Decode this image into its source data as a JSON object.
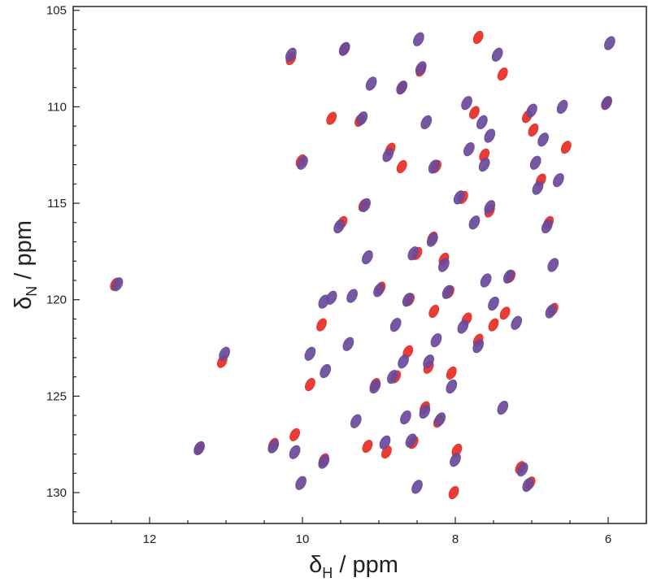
{
  "chart_data": {
    "type": "scatter",
    "title": "",
    "xlabel": {
      "symbol": "δ",
      "sub": "H",
      "unit": " / ppm"
    },
    "ylabel": {
      "symbol": "δ",
      "sub": "N",
      "unit": " / ppm"
    },
    "xlim": [
      13.0,
      5.5
    ],
    "ylim": [
      104.8,
      131.6
    ],
    "x_reversed": true,
    "y_reversed": true,
    "x_ticks": [
      {
        "value": 12,
        "label": "12"
      },
      {
        "value": 10,
        "label": "10"
      },
      {
        "value": 8,
        "label": "8"
      },
      {
        "value": 6,
        "label": "6"
      }
    ],
    "y_ticks": [
      {
        "value": 105,
        "label": "105"
      },
      {
        "value": 110,
        "label": "110"
      },
      {
        "value": 115,
        "label": "115"
      },
      {
        "value": 120,
        "label": "120"
      },
      {
        "value": 125,
        "label": "125"
      },
      {
        "value": 130,
        "label": "130"
      }
    ],
    "grid": false,
    "legend": "none",
    "series": [
      {
        "color": "#e8322a",
        "points": [
          [
            12.45,
            119.2
          ],
          [
            11.05,
            123.2
          ],
          [
            10.15,
            107.5
          ],
          [
            10.02,
            112.8
          ],
          [
            9.9,
            124.4
          ],
          [
            9.75,
            121.3
          ],
          [
            9.72,
            128.3
          ],
          [
            9.48,
            116.0
          ],
          [
            9.45,
            107.0
          ],
          [
            9.25,
            110.7
          ],
          [
            9.2,
            115.1
          ],
          [
            9.05,
            124.4
          ],
          [
            8.98,
            119.4
          ],
          [
            8.9,
            127.9
          ],
          [
            8.85,
            112.2
          ],
          [
            8.78,
            124.0
          ],
          [
            8.7,
            109.0
          ],
          [
            8.7,
            113.1
          ],
          [
            8.62,
            122.7
          ],
          [
            8.6,
            120.0
          ],
          [
            8.55,
            127.4
          ],
          [
            8.5,
            117.6
          ],
          [
            8.45,
            108.1
          ],
          [
            8.4,
            125.6
          ],
          [
            8.35,
            123.5
          ],
          [
            8.3,
            116.8
          ],
          [
            8.25,
            113.1
          ],
          [
            8.22,
            126.3
          ],
          [
            8.15,
            117.9
          ],
          [
            8.08,
            119.6
          ],
          [
            8.05,
            123.8
          ],
          [
            8.02,
            130.0
          ],
          [
            7.98,
            127.8
          ],
          [
            7.9,
            114.7
          ],
          [
            7.85,
            121.0
          ],
          [
            7.75,
            110.3
          ],
          [
            7.7,
            122.1
          ],
          [
            7.62,
            112.5
          ],
          [
            7.55,
            115.4
          ],
          [
            7.5,
            121.3
          ],
          [
            7.38,
            108.3
          ],
          [
            7.28,
            118.8
          ],
          [
            7.15,
            128.7
          ],
          [
            7.06,
            110.5
          ],
          [
            6.98,
            111.2
          ],
          [
            6.88,
            113.8
          ],
          [
            6.78,
            116.0
          ],
          [
            6.72,
            120.5
          ],
          [
            6.55,
            112.1
          ],
          [
            6.02,
            109.8
          ],
          [
            11.35,
            127.7
          ],
          [
            10.38,
            127.5
          ],
          [
            10.1,
            127.0
          ],
          [
            9.62,
            110.6
          ],
          [
            9.15,
            127.6
          ],
          [
            8.28,
            120.6
          ],
          [
            7.7,
            106.4
          ],
          [
            7.35,
            120.7
          ],
          [
            7.02,
            129.5
          ]
        ]
      },
      {
        "color": "#6a4a9a",
        "points": [
          [
            12.42,
            119.2
          ],
          [
            11.35,
            127.7
          ],
          [
            11.02,
            122.8
          ],
          [
            10.38,
            127.6
          ],
          [
            10.15,
            107.3
          ],
          [
            10.1,
            127.9
          ],
          [
            10.02,
            129.5
          ],
          [
            10.0,
            112.9
          ],
          [
            9.9,
            122.8
          ],
          [
            9.72,
            120.1
          ],
          [
            9.72,
            128.4
          ],
          [
            9.7,
            123.7
          ],
          [
            9.62,
            119.9
          ],
          [
            9.52,
            116.2
          ],
          [
            9.45,
            107.0
          ],
          [
            9.4,
            122.3
          ],
          [
            9.35,
            119.8
          ],
          [
            9.3,
            126.3
          ],
          [
            9.22,
            110.6
          ],
          [
            9.18,
            115.1
          ],
          [
            9.15,
            117.8
          ],
          [
            9.1,
            108.8
          ],
          [
            9.05,
            124.5
          ],
          [
            9.0,
            119.5
          ],
          [
            8.92,
            127.4
          ],
          [
            8.88,
            112.5
          ],
          [
            8.82,
            124.0
          ],
          [
            8.78,
            121.3
          ],
          [
            8.7,
            109.0
          ],
          [
            8.68,
            123.2
          ],
          [
            8.65,
            126.1
          ],
          [
            8.62,
            120.0
          ],
          [
            8.58,
            127.3
          ],
          [
            8.55,
            117.6
          ],
          [
            8.5,
            129.7
          ],
          [
            8.48,
            106.5
          ],
          [
            8.45,
            108.0
          ],
          [
            8.4,
            125.8
          ],
          [
            8.38,
            110.8
          ],
          [
            8.35,
            123.2
          ],
          [
            8.3,
            116.9
          ],
          [
            8.28,
            113.1
          ],
          [
            8.25,
            122.1
          ],
          [
            8.2,
            126.2
          ],
          [
            8.15,
            118.2
          ],
          [
            8.1,
            119.6
          ],
          [
            8.05,
            124.5
          ],
          [
            8.0,
            128.3
          ],
          [
            7.95,
            114.7
          ],
          [
            7.9,
            121.4
          ],
          [
            7.85,
            109.8
          ],
          [
            7.82,
            112.2
          ],
          [
            7.75,
            116.0
          ],
          [
            7.7,
            122.4
          ],
          [
            7.65,
            110.8
          ],
          [
            7.62,
            113.0
          ],
          [
            7.6,
            119.0
          ],
          [
            7.55,
            111.5
          ],
          [
            7.55,
            115.2
          ],
          [
            7.5,
            120.2
          ],
          [
            7.45,
            107.3
          ],
          [
            7.38,
            125.6
          ],
          [
            7.3,
            118.8
          ],
          [
            7.2,
            121.2
          ],
          [
            7.12,
            128.8
          ],
          [
            7.05,
            129.6
          ],
          [
            7.0,
            110.2
          ],
          [
            6.95,
            112.9
          ],
          [
            6.92,
            114.2
          ],
          [
            6.85,
            111.7
          ],
          [
            6.8,
            116.2
          ],
          [
            6.75,
            120.6
          ],
          [
            6.72,
            118.2
          ],
          [
            6.65,
            113.8
          ],
          [
            6.6,
            110.0
          ],
          [
            6.02,
            109.8
          ],
          [
            5.98,
            106.7
          ]
        ]
      }
    ]
  }
}
